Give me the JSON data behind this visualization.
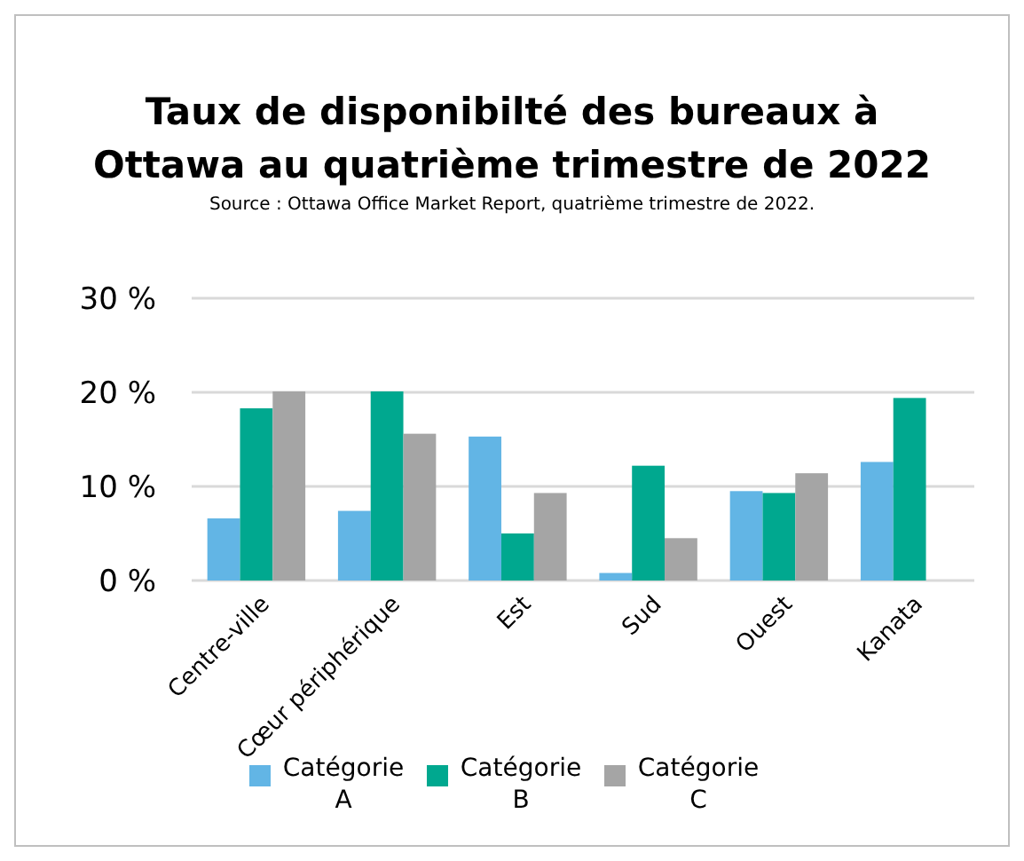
{
  "chart_data": {
    "type": "bar",
    "title": "Taux de disponibilté des bureaux à Ottawa au quatrième trimestre de 2022",
    "subtitle": "Source : Ottawa Office Market Report, quatrième trimestre de 2022.",
    "categories": [
      "Centre-ville",
      "Cœur périphérique",
      "Est",
      "Sud",
      "Ouest",
      "Kanata"
    ],
    "series": [
      {
        "name": "Catégorie A",
        "color": "#62b5e5",
        "values": [
          6.6,
          7.4,
          15.3,
          0.8,
          9.5,
          12.6
        ]
      },
      {
        "name": "Catégorie B",
        "color": "#00a88f",
        "values": [
          18.3,
          20.1,
          5.0,
          12.2,
          9.3,
          19.4
        ]
      },
      {
        "name": "Catégorie C",
        "color": "#a5a5a5",
        "values": [
          20.1,
          15.6,
          9.3,
          4.5,
          11.4,
          null
        ]
      }
    ],
    "ylim": [
      0,
      30
    ],
    "yticks": [
      {
        "value": 0,
        "label": "0 %"
      },
      {
        "value": 10,
        "label": "10 %"
      },
      {
        "value": 20,
        "label": "20 %"
      },
      {
        "value": 30,
        "label": "30 %"
      }
    ],
    "grid": "y",
    "legend": "bottom"
  }
}
